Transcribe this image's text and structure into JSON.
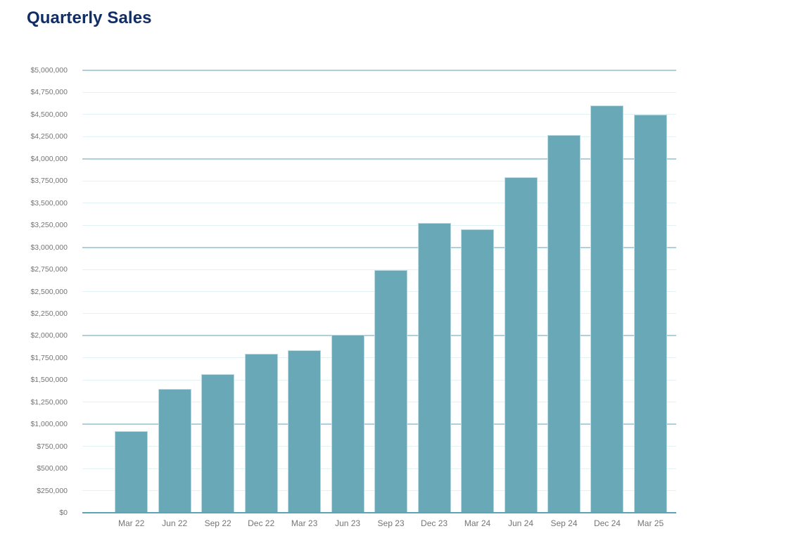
{
  "header": {
    "title": "Quarterly Sales"
  },
  "chart_data": {
    "type": "bar",
    "title": "Quarterly Sales",
    "categories": [
      "Mar 22",
      "Jun 22",
      "Sep 22",
      "Dec 22",
      "Mar 23",
      "Jun 23",
      "Sep 23",
      "Dec 23",
      "Mar 24",
      "Jun 24",
      "Sep 24",
      "Dec 24",
      "Mar 25"
    ],
    "values": [
      925000,
      1400000,
      1570000,
      1800000,
      1840000,
      2010000,
      2740000,
      3275000,
      3205000,
      3790000,
      4265000,
      4605000,
      4500000
    ],
    "xlabel": "",
    "ylabel": "",
    "ylim": [
      0,
      5000000
    ],
    "ytick_step": 250000,
    "ytick_labels": [
      "$0",
      "$250,000",
      "$500,000",
      "$750,000",
      "$1,000,000",
      "$1,250,000",
      "$1,500,000",
      "$1,750,000",
      "$2,000,000",
      "$2,250,000",
      "$2,500,000",
      "$2,750,000",
      "$3,000,000",
      "$3,250,000",
      "$3,500,000",
      "$3,750,000",
      "$4,000,000",
      "$4,250,000",
      "$4,500,000",
      "$4,750,000",
      "$5,000,000"
    ],
    "grid": "horizontal",
    "legend": "none",
    "colors": {
      "bar_fill": "#69a9b7",
      "bar_border": "#b9dae2",
      "gridline_minor": "#e2f1f4",
      "gridline_major": "#aed0da",
      "axis_line": "#5ba4b4",
      "tick_label": "#757575",
      "title": "#112d66",
      "background": "#ffffff"
    }
  }
}
